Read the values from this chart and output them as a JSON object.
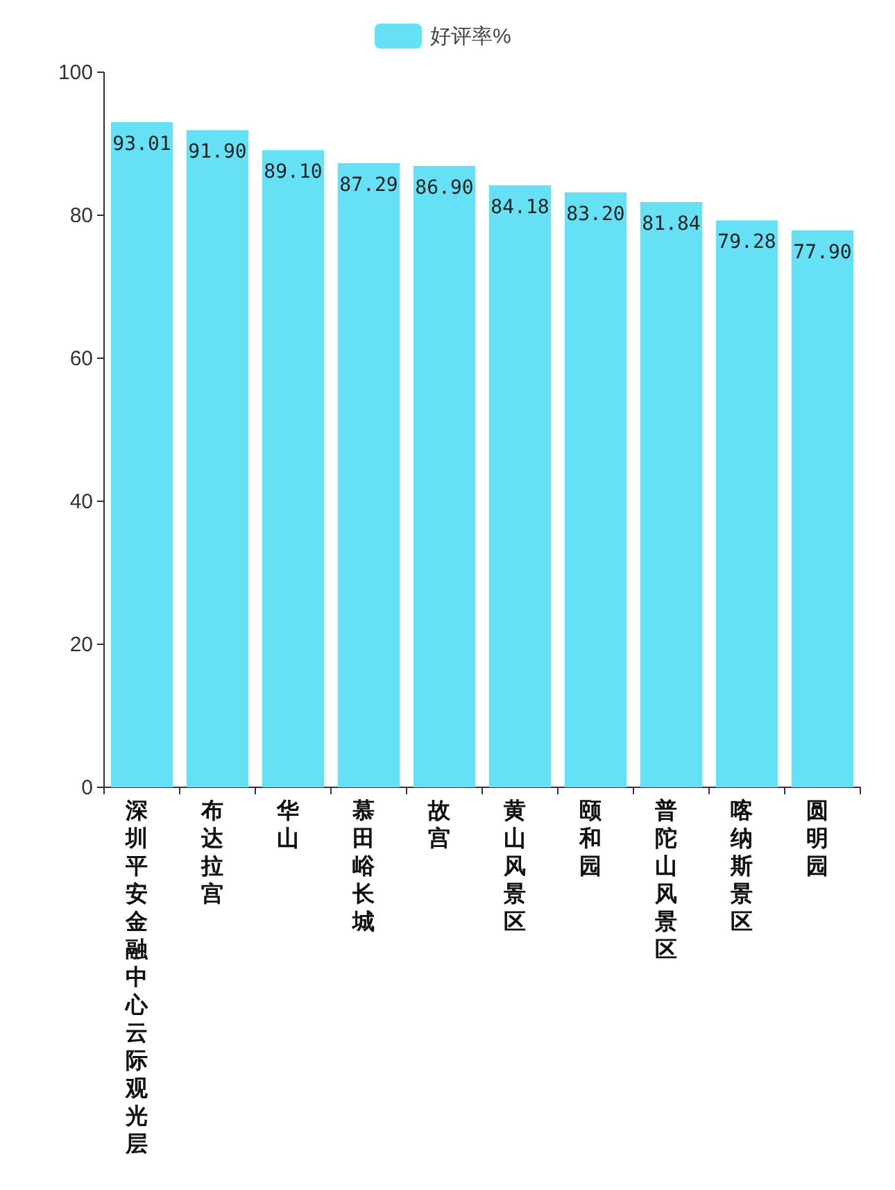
{
  "chart_data": {
    "type": "bar",
    "categories": [
      "深圳平安金融中心云际观光层",
      "布达拉宫",
      "华山",
      "慕田峪长城",
      "故宫",
      "黄山风景区",
      "颐和园",
      "普陀山风景区",
      "喀纳斯景区",
      "圆明园"
    ],
    "series": [
      {
        "name": "好评率%",
        "color": "#66e0f5",
        "values": [
          93.01,
          91.9,
          89.1,
          87.29,
          86.9,
          84.18,
          83.2,
          81.84,
          79.28,
          77.9
        ]
      }
    ],
    "value_labels": [
      "93.01",
      "91.90",
      "89.10",
      "87.29",
      "86.90",
      "84.18",
      "83.20",
      "81.84",
      "79.28",
      "77.90"
    ],
    "ylim": [
      0,
      100
    ],
    "yticks": [
      0,
      20,
      40,
      60,
      80,
      100
    ],
    "legend": "top",
    "grid": false
  }
}
